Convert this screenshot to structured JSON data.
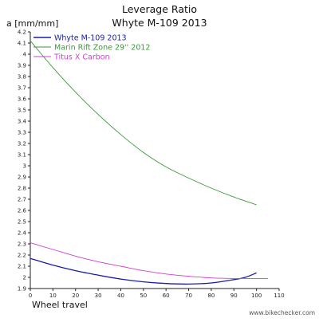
{
  "chart_data": {
    "type": "line",
    "title": "Leverage Ratio",
    "subtitle": "Whyte M-109 2013",
    "ylabel": "a [mm/mm]",
    "xlabel": "Wheel travel",
    "watermark": "www.bikechecker.com",
    "xlim": [
      0,
      110
    ],
    "ylim": [
      1.9,
      4.2
    ],
    "xticks": [
      0,
      10,
      20,
      30,
      40,
      50,
      60,
      70,
      80,
      90,
      100,
      110
    ],
    "yticks": [
      1.9,
      2,
      2.1,
      2.2,
      2.3,
      2.4,
      2.5,
      2.6,
      2.7,
      2.8,
      2.9,
      3,
      3.1,
      3.2,
      3.3,
      3.4,
      3.5,
      3.6,
      3.7,
      3.8,
      3.9,
      4,
      4.1,
      4.2
    ],
    "grid": false,
    "legend_position": "top-left",
    "series": [
      {
        "name": "Whyte M-109 2013",
        "color": "#1a1aaa",
        "x": [
          0,
          10,
          20,
          30,
          40,
          50,
          60,
          70,
          80,
          90,
          95,
          100
        ],
        "y": [
          2.17,
          2.11,
          2.06,
          2.02,
          1.985,
          1.96,
          1.945,
          1.94,
          1.95,
          1.98,
          2.0,
          2.04
        ]
      },
      {
        "name": "Marin Rift Zone 29'' 2012",
        "color": "#3a9a3a",
        "x": [
          0,
          10,
          20,
          30,
          40,
          50,
          60,
          70,
          80,
          90,
          100
        ],
        "y": [
          4.12,
          3.88,
          3.66,
          3.46,
          3.28,
          3.12,
          2.99,
          2.89,
          2.8,
          2.72,
          2.65
        ]
      },
      {
        "name": "Titus X Carbon",
        "color": "#d040d0",
        "x": [
          0,
          10,
          20,
          30,
          40,
          50,
          60,
          70,
          80,
          90,
          100,
          105
        ],
        "y": [
          2.31,
          2.25,
          2.19,
          2.14,
          2.1,
          2.06,
          2.03,
          2.01,
          1.995,
          1.99,
          1.99,
          1.99
        ]
      }
    ]
  }
}
